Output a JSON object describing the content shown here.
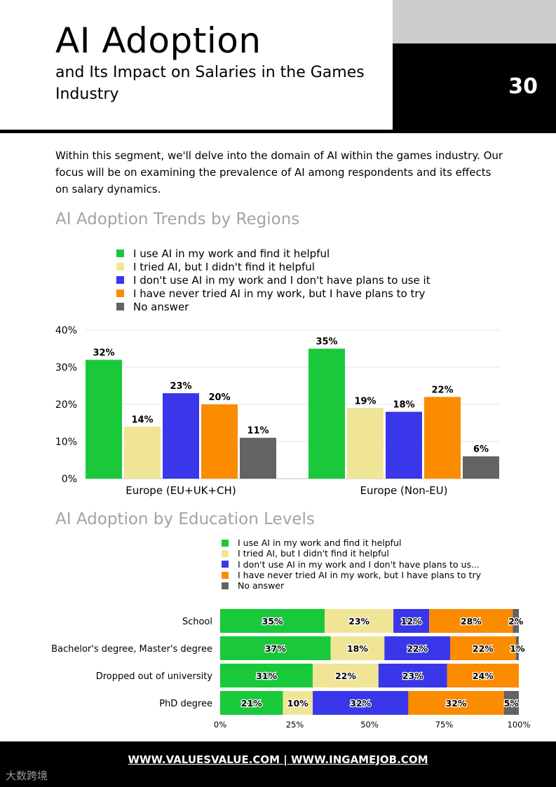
{
  "header": {
    "title": "AI Adoption",
    "subtitle": "and Its Impact on Salaries in the Games Industry",
    "page_number": "30"
  },
  "intro": "Within this segment, we'll delve into the domain of AI within the games industry. Our focus will be on examining the prevalence of AI among respondents and its effects on salary dynamics.",
  "colors": {
    "green": "#19c93a",
    "yellow": "#f0e595",
    "blue": "#3a36ea",
    "orange": "#fb8c00",
    "grey": "#636363"
  },
  "legend_full": [
    "I use AI in my work and find it helpful",
    "I tried AI, but I didn't find it helpful",
    "I don't use AI in my work and I don't have plans to use it",
    "I have never tried AI in my work, but I have plans to try",
    "No answer"
  ],
  "legend_short": [
    "I use AI in my work and find it helpful",
    "I tried AI, but I didn't find it helpful",
    "I don't use AI in my work and I don't have plans to us...",
    "I have never tried AI in my work, but I have plans to try",
    "No answer"
  ],
  "footer": {
    "links": "WWW.VALUESVALUE.COM | WWW.INGAMEJOB.COM",
    "watermark": "大数跨境"
  },
  "chart_data": [
    {
      "type": "bar",
      "title": "AI Adoption Trends by Regions",
      "categories": [
        "Europe (EU+UK+CH)",
        "Europe (Non-EU)"
      ],
      "series": [
        {
          "name": "I use AI in my work and find it helpful",
          "values": [
            32,
            35
          ]
        },
        {
          "name": "I tried AI, but I didn't find it helpful",
          "values": [
            14,
            19
          ]
        },
        {
          "name": "I don't use AI in my work and I don't have plans to use it",
          "values": [
            23,
            18
          ]
        },
        {
          "name": "I have never tried AI in my work, but I have plans to try",
          "values": [
            20,
            22
          ]
        },
        {
          "name": "No answer",
          "values": [
            11,
            6
          ]
        }
      ],
      "ylim": [
        0,
        40
      ],
      "yticks": [
        0,
        10,
        20,
        30,
        40
      ],
      "ytick_labels": [
        "0%",
        "10%",
        "20%",
        "30%",
        "40%"
      ],
      "grid": true,
      "legend_position": "top"
    },
    {
      "type": "bar",
      "orientation": "horizontal-stacked",
      "title": "AI Adoption by Education Levels",
      "categories": [
        "School",
        "Bachelor's degree, Master's degree",
        "Dropped out of university",
        "PhD degree"
      ],
      "series": [
        {
          "name": "I use AI in my work and find it helpful",
          "values": [
            35,
            37,
            31,
            21
          ]
        },
        {
          "name": "I tried AI, but I didn't find it helpful",
          "values": [
            23,
            18,
            22,
            10
          ]
        },
        {
          "name": "I don't use AI in my work and I don't have plans to use it",
          "values": [
            12,
            22,
            23,
            32
          ]
        },
        {
          "name": "I have never tried AI in my work, but I have plans to try",
          "values": [
            28,
            22,
            24,
            32
          ]
        },
        {
          "name": "No answer",
          "values": [
            2,
            1,
            0,
            5
          ]
        }
      ],
      "xlim": [
        0,
        100
      ],
      "xticks": [
        0,
        25,
        50,
        75,
        100
      ],
      "xtick_labels": [
        "0%",
        "25%",
        "50%",
        "75%",
        "100%"
      ],
      "legend_position": "top"
    }
  ]
}
